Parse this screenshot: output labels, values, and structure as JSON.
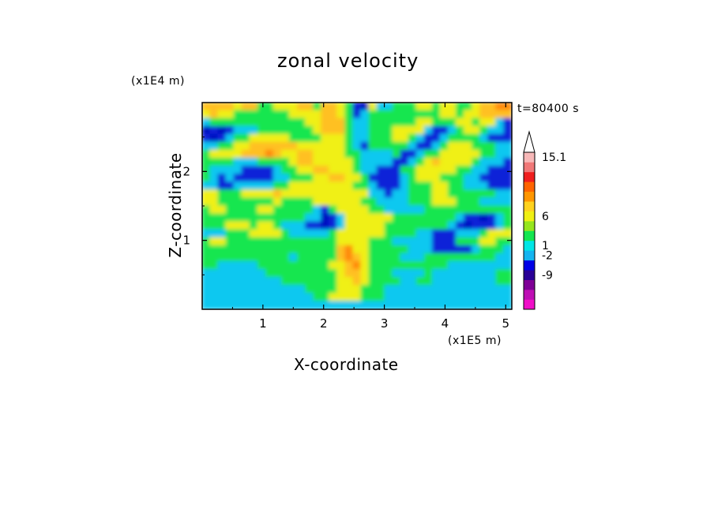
{
  "chart_data": {
    "type": "heatmap",
    "title": "zonal velocity",
    "time_label": "t=80400 s",
    "xlabel": "X-coordinate",
    "ylabel": "Z-coordinate",
    "x_unit_label": "(x1E5 m)",
    "y_unit_label": "(x1E4 m)",
    "x_tick_labels": [
      "1",
      "2",
      "3",
      "4",
      "5"
    ],
    "y_tick_labels": [
      "1",
      "2"
    ],
    "x_ticks": [
      1,
      2,
      3,
      4,
      5
    ],
    "y_ticks": [
      1,
      2
    ],
    "xlim": [
      0,
      5.1
    ],
    "ylim": [
      0,
      3.0
    ],
    "colorbar": {
      "tick_labels": [
        "15.1",
        "6",
        "1",
        "-2",
        "-9"
      ],
      "colors_bottom_to_top": [
        "#f00fc8",
        "#be0fb4",
        "#7f0096",
        "#2a0096",
        "#0000e6",
        "#14b4f0",
        "#00e6e6",
        "#14e650",
        "#96e61e",
        "#f0f014",
        "#ffd21e",
        "#ff9600",
        "#ff6400",
        "#f01e1e",
        "#f07878",
        "#f7b8b8"
      ]
    },
    "field_levels": [
      -9,
      -2,
      0,
      1,
      3,
      6,
      10
    ],
    "field_colors": [
      "#0010c0",
      "#1020d8",
      "#10c8f0",
      "#14e650",
      "#f0f014",
      "#ffc020",
      "#ff8a10",
      "#f05a10"
    ],
    "field_rows": [
      "555545533444553554310422333443443345566",
      "454433333334444554312333333333443445555",
      "233333333333344555322333333443334434421",
      "010122233333334555322333444421123443221",
      "101233444443333444322333443211233332111",
      "223344555555444444321333332112344433322",
      "344445556544554444332222311233444443322",
      "333322233334554444432222112345444432221",
      "322221111233445544432211133444443322111",
      "321211111223334455443111123444333221111",
      "221122222334444444433211123334433222111",
      "443334444544444444444221223334433333322",
      "443333333433334444443322223334443332222",
      "344333344333332134444332222233333333333",
      "333333333333322012444444333333332110123",
      "333444344322211012444443333333321011123",
      "222333444432222234444443333221112223444",
      "344333333333333334444333222221113334433",
      "333333333333333335644333332221111123332",
      "333333333332333335654333322233333333322",
      "332222233333333344564333333333322222222",
      "222222223333333334554333222232222222233",
      "222222222233333334454333322332222222233",
      "222222222222233334443332222222222222222",
      "222222222222223344443332222222222222222",
      "222222222222222222222222222222222222222"
    ]
  }
}
